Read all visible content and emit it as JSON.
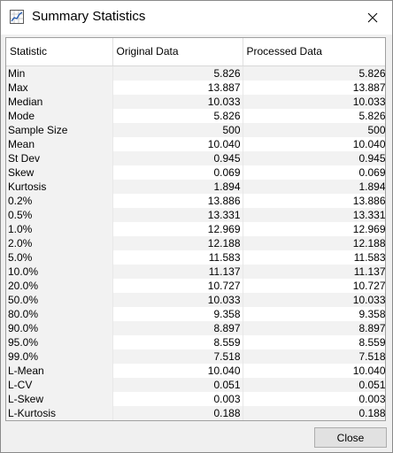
{
  "window": {
    "title": "Summary Statistics",
    "app_icon": "chart-icon",
    "close_icon": "close-icon"
  },
  "table": {
    "columns": [
      "Statistic",
      "Original Data",
      "Processed Data"
    ],
    "rows": [
      {
        "label": "Min",
        "original": "5.826",
        "processed": "5.826"
      },
      {
        "label": "Max",
        "original": "13.887",
        "processed": "13.887"
      },
      {
        "label": "Median",
        "original": "10.033",
        "processed": "10.033"
      },
      {
        "label": "Mode",
        "original": "5.826",
        "processed": "5.826"
      },
      {
        "label": "Sample Size",
        "original": "500",
        "processed": "500"
      },
      {
        "label": "Mean",
        "original": "10.040",
        "processed": "10.040"
      },
      {
        "label": "St Dev",
        "original": "0.945",
        "processed": "0.945"
      },
      {
        "label": "Skew",
        "original": "0.069",
        "processed": "0.069"
      },
      {
        "label": "Kurtosis",
        "original": "1.894",
        "processed": "1.894"
      },
      {
        "label": "0.2%",
        "original": "13.886",
        "processed": "13.886"
      },
      {
        "label": "0.5%",
        "original": "13.331",
        "processed": "13.331"
      },
      {
        "label": "1.0%",
        "original": "12.969",
        "processed": "12.969"
      },
      {
        "label": "2.0%",
        "original": "12.188",
        "processed": "12.188"
      },
      {
        "label": "5.0%",
        "original": "11.583",
        "processed": "11.583"
      },
      {
        "label": "10.0%",
        "original": "11.137",
        "processed": "11.137"
      },
      {
        "label": "20.0%",
        "original": "10.727",
        "processed": "10.727"
      },
      {
        "label": "50.0%",
        "original": "10.033",
        "processed": "10.033"
      },
      {
        "label": "80.0%",
        "original": "9.358",
        "processed": "9.358"
      },
      {
        "label": "90.0%",
        "original": "8.897",
        "processed": "8.897"
      },
      {
        "label": "95.0%",
        "original": "8.559",
        "processed": "8.559"
      },
      {
        "label": "99.0%",
        "original": "7.518",
        "processed": "7.518"
      },
      {
        "label": "L-Mean",
        "original": "10.040",
        "processed": "10.040"
      },
      {
        "label": "L-CV",
        "original": "0.051",
        "processed": "0.051"
      },
      {
        "label": "L-Skew",
        "original": "0.003",
        "processed": "0.003"
      },
      {
        "label": "L-Kurtosis",
        "original": "0.188",
        "processed": "0.188"
      }
    ]
  },
  "footer": {
    "close_label": "Close"
  }
}
